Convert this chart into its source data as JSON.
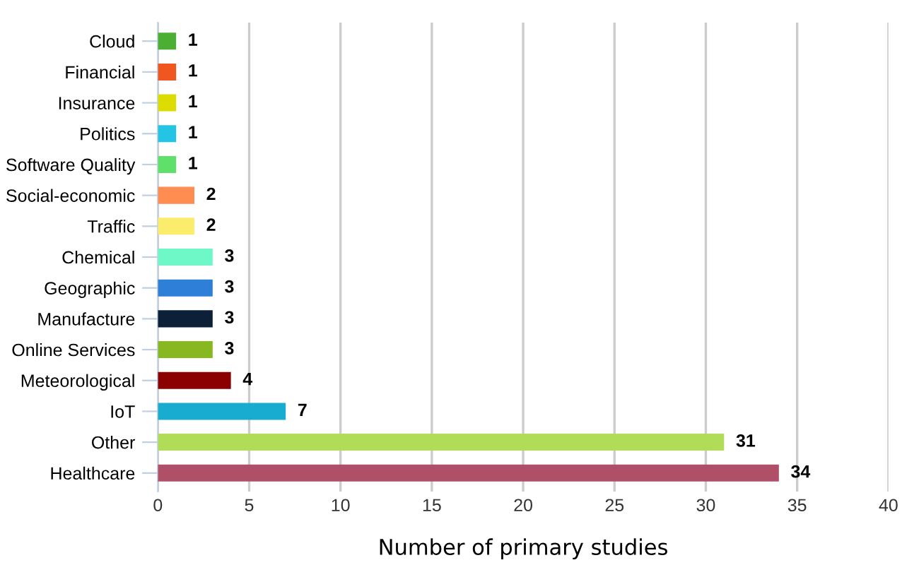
{
  "chart_data": {
    "type": "bar",
    "orientation": "horizontal",
    "xlabel": "Number of primary studies",
    "categories": [
      "Cloud",
      "Financial",
      "Insurance",
      "Politics",
      "Software Quality",
      "Social-economic",
      "Traffic",
      "Chemical",
      "Geographic",
      "Manufacture",
      "Online Services",
      "Meteorological",
      "IoT",
      "Other",
      "Healthcare"
    ],
    "values": [
      1,
      1,
      1,
      1,
      1,
      2,
      2,
      3,
      3,
      3,
      3,
      4,
      7,
      31,
      34
    ],
    "colors": [
      "#4caf33",
      "#f0561f",
      "#dcdc00",
      "#24c4e4",
      "#5ee06a",
      "#ff8c50",
      "#fcec6c",
      "#6ef8c8",
      "#2e7fd8",
      "#0c2038",
      "#88b820",
      "#8b0000",
      "#18acd0",
      "#b0dc58",
      "#b05068"
    ],
    "xlim": [
      0,
      40
    ],
    "xticks": [
      0,
      5,
      10,
      15,
      20,
      25,
      30,
      35,
      40
    ],
    "grid": "x",
    "data_labels": true
  }
}
